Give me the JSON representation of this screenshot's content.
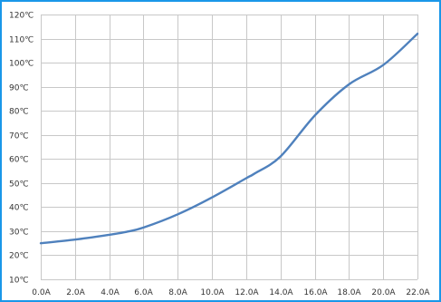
{
  "chart_data": {
    "type": "line",
    "title": "",
    "xlabel": "",
    "ylabel": "",
    "x": [
      0.0,
      2.0,
      4.0,
      5.0,
      6.0,
      8.0,
      10.0,
      12.0,
      12.5,
      14.0,
      16.0,
      18.0,
      20.0,
      22.0
    ],
    "x_tick_labels": [
      "0.0A",
      "2.0A",
      "4.0A",
      "6.0A",
      "8.0A",
      "10.0A",
      "12.0A",
      "14.0A",
      "16.0A",
      "18.0A",
      "20.0A",
      "22.0A"
    ],
    "x_ticks": [
      0,
      2,
      4,
      6,
      8,
      10,
      12,
      14,
      16,
      18,
      20,
      22
    ],
    "y_tick_labels": [
      "10℃",
      "20℃",
      "30℃",
      "40℃",
      "50℃",
      "60℃",
      "70℃",
      "80℃",
      "90℃",
      "100℃",
      "110℃",
      "120℃"
    ],
    "y_ticks": [
      10,
      20,
      30,
      40,
      50,
      60,
      70,
      80,
      90,
      100,
      110,
      120
    ],
    "series": [
      {
        "values": [
          25,
          26.5,
          28.5,
          29.7,
          31.5,
          37,
          44,
          52,
          54,
          61,
          78,
          91,
          99,
          112
        ]
      }
    ],
    "xlim": [
      0,
      22
    ],
    "ylim": [
      10,
      120
    ],
    "grid": true,
    "legend": "none",
    "line_color": "#4f81bd",
    "frame_color": "#1a97e8"
  }
}
